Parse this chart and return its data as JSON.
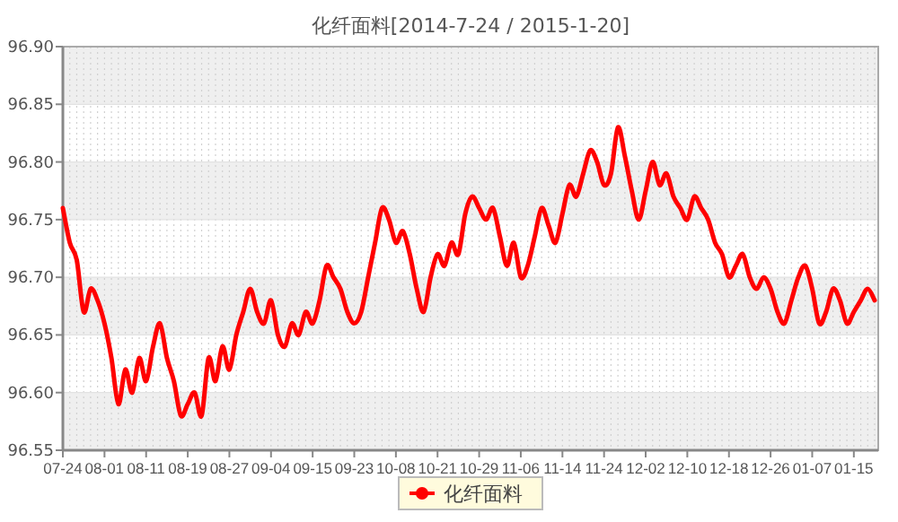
{
  "chart_data": {
    "type": "line",
    "title": "化纤面料[2014-7-24 / 2015-1-20]",
    "categories": [
      "07-24",
      null,
      null,
      null,
      null,
      null,
      "08-01",
      null,
      null,
      null,
      null,
      null,
      "08-11",
      null,
      null,
      null,
      null,
      null,
      "08-19",
      null,
      null,
      null,
      null,
      null,
      "08-27",
      null,
      null,
      null,
      null,
      null,
      "09-04",
      null,
      null,
      null,
      null,
      null,
      "09-15",
      null,
      null,
      null,
      null,
      null,
      "09-23",
      null,
      null,
      null,
      null,
      null,
      "10-08",
      null,
      null,
      null,
      null,
      null,
      "10-21",
      null,
      null,
      null,
      null,
      null,
      "10-29",
      null,
      null,
      null,
      null,
      null,
      "11-06",
      null,
      null,
      null,
      null,
      null,
      "11-14",
      null,
      null,
      null,
      null,
      null,
      "11-24",
      null,
      null,
      null,
      null,
      null,
      "12-02",
      null,
      null,
      null,
      null,
      null,
      "12-10",
      null,
      null,
      null,
      null,
      null,
      "12-18",
      null,
      null,
      null,
      null,
      null,
      "12-26",
      null,
      null,
      null,
      null,
      null,
      "01-07",
      null,
      null,
      null,
      null,
      null,
      "01-15",
      null,
      null,
      null
    ],
    "series": [
      {
        "name": "化纤面料",
        "color": "#ff0000",
        "values": [
          96.76,
          96.73,
          96.715,
          96.67,
          96.69,
          96.68,
          96.66,
          96.63,
          96.59,
          96.62,
          96.6,
          96.63,
          96.61,
          96.64,
          96.66,
          96.63,
          96.61,
          96.58,
          96.59,
          96.6,
          96.58,
          96.63,
          96.61,
          96.64,
          96.62,
          96.65,
          96.67,
          96.69,
          96.67,
          96.66,
          96.68,
          96.65,
          96.64,
          96.66,
          96.65,
          96.67,
          96.66,
          96.68,
          96.71,
          96.7,
          96.69,
          96.67,
          96.66,
          96.67,
          96.7,
          96.73,
          96.76,
          96.75,
          96.73,
          96.74,
          96.72,
          96.69,
          96.67,
          96.7,
          96.72,
          96.71,
          96.73,
          96.72,
          96.755,
          96.77,
          96.76,
          96.75,
          96.76,
          96.735,
          96.71,
          96.73,
          96.7,
          96.71,
          96.735,
          96.76,
          96.745,
          96.73,
          96.755,
          96.78,
          96.77,
          96.79,
          96.81,
          96.8,
          96.78,
          96.79,
          96.83,
          96.805,
          96.775,
          96.75,
          96.775,
          96.8,
          96.78,
          96.79,
          96.77,
          96.76,
          96.75,
          96.77,
          96.76,
          96.75,
          96.73,
          96.72,
          96.7,
          96.71,
          96.72,
          96.7,
          96.69,
          96.7,
          96.69,
          96.67,
          96.66,
          96.68,
          96.7,
          96.71,
          96.69,
          96.66,
          96.67,
          96.69,
          96.68,
          96.66,
          96.67,
          96.68,
          96.69,
          96.68
        ]
      }
    ],
    "ylim": [
      96.55,
      96.9
    ],
    "yticks": [
      {
        "value": 96.55,
        "label": "96.55"
      },
      {
        "value": 96.6,
        "label": "96.60"
      },
      {
        "value": 96.65,
        "label": "96.65"
      },
      {
        "value": 96.7,
        "label": "96.70"
      },
      {
        "value": 96.75,
        "label": "96.75"
      },
      {
        "value": 96.8,
        "label": "96.80"
      },
      {
        "value": 96.85,
        "label": "96.85"
      },
      {
        "value": 96.9,
        "label": "96.90"
      }
    ],
    "grid": true,
    "legend": "bottom",
    "marker": "none",
    "line_style": "solid"
  }
}
